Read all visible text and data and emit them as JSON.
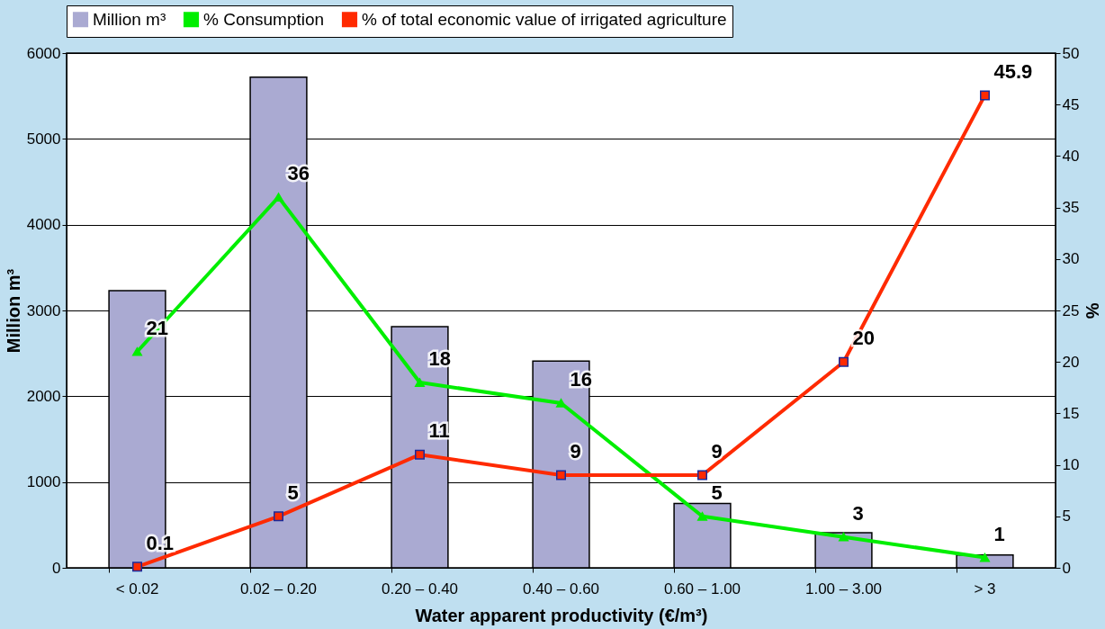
{
  "chart_data": {
    "type": "bar",
    "xlabel": "Water apparent productivity (€/m³)",
    "ylabel": "Million m³",
    "y2label": "%",
    "categories": [
      "< 0.02",
      "0.02 – 0.20",
      "0.20 – 0.40",
      "0.40 – 0.60",
      "0.60 – 1.00",
      "1.00 – 3.00",
      "> 3"
    ],
    "series": [
      {
        "name": "Million m³",
        "color": "#aaaad2",
        "values": [
          3230,
          5720,
          2810,
          2410,
          750,
          410,
          150
        ]
      },
      {
        "name": "% Consumption",
        "type": "line",
        "axis": "y2",
        "color": "#00ee00",
        "marker": "triangle",
        "values": [
          21,
          36,
          18,
          16,
          5,
          3,
          1
        ],
        "value_labels": [
          "21",
          "36",
          "18",
          "16",
          "5",
          "3",
          "1"
        ]
      },
      {
        "name": "% of total economic value of irrigated agriculture",
        "type": "line",
        "axis": "y2",
        "color": "#ff2a00",
        "marker": "square",
        "values": [
          0.1,
          5,
          11,
          9,
          9,
          20,
          45.9
        ],
        "value_labels": [
          "0.1",
          "5",
          "11",
          "9",
          "9",
          "20",
          "45.9"
        ]
      }
    ],
    "ylim": [
      0,
      6000
    ],
    "yticks": [
      0,
      1000,
      2000,
      3000,
      4000,
      5000,
      6000
    ],
    "y2lim": [
      0,
      50
    ],
    "y2ticks": [
      0,
      5,
      10,
      15,
      20,
      25,
      30,
      35,
      40,
      45,
      50
    ],
    "grid": "y",
    "legend": "top"
  }
}
